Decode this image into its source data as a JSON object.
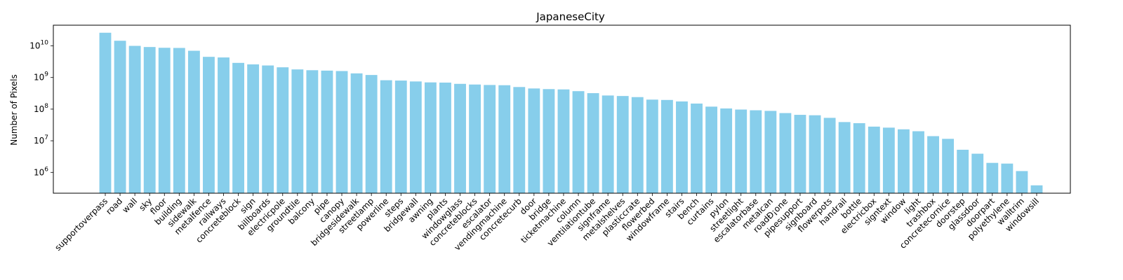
{
  "chart_data": {
    "type": "bar",
    "title": "JapaneseCity",
    "xlabel": "",
    "ylabel": "Number of Pixels",
    "yscale": "log",
    "ylim": [
      220000,
      45000000000
    ],
    "grid": false,
    "bar_color": "#87CEEB",
    "categories": [
      "supportoverpass",
      "road",
      "wall",
      "sky",
      "floor",
      "building",
      "sidewalk",
      "metalfence",
      "railways",
      "concreteblock",
      "sign",
      "billboards",
      "electricpole",
      "groundtile",
      "balcony",
      "pipe",
      "canopy",
      "bridgesidewalk",
      "streetlamp",
      "powerline",
      "steps",
      "bridgewall",
      "awning",
      "plants",
      "windowglass",
      "concreteblocks",
      "escalator",
      "vendingmachine",
      "concretecurb",
      "door",
      "bridge",
      "ticketmachine",
      "column",
      "ventilationtube",
      "signframe",
      "metalshelves",
      "plasticcrate",
      "flowerbed",
      "windowframe",
      "stairs",
      "bench",
      "curtains",
      "pylon",
      "streetlight",
      "escalatorbase",
      "metalcan",
      "roadĐ¡one",
      "pipesupport",
      "signboard",
      "flowerpots",
      "handrail",
      "bottle",
      "electricbox",
      "signtext",
      "window",
      "light",
      "trashbox",
      "concretecornice",
      "doorstep",
      "glassdoor",
      "doorpart",
      "polyethylene",
      "walltrim",
      "windowsill"
    ],
    "values": [
      26000000000,
      14500000000,
      10000000000,
      9200000000,
      8700000000,
      8600000000,
      7000000000,
      4500000000,
      4300000000,
      2900000000,
      2600000000,
      2400000000,
      2100000000,
      1800000000,
      1700000000,
      1650000000,
      1600000000,
      1350000000,
      1200000000,
      820000000,
      800000000,
      750000000,
      700000000,
      690000000,
      630000000,
      600000000,
      580000000,
      570000000,
      500000000,
      450000000,
      430000000,
      420000000,
      370000000,
      320000000,
      270000000,
      260000000,
      240000000,
      200000000,
      195000000,
      175000000,
      150000000,
      120000000,
      105000000,
      97000000,
      92000000,
      88000000,
      75000000,
      66000000,
      64000000,
      53000000,
      39000000,
      36000000,
      28000000,
      26000000,
      23000000,
      20000000,
      14000000,
      11500000,
      5200000,
      3900000,
      2000000,
      1900000,
      1100000,
      390000
    ],
    "y_ticks": [
      {
        "value": 1000000,
        "base": "10",
        "exp": "6"
      },
      {
        "value": 10000000,
        "base": "10",
        "exp": "7"
      },
      {
        "value": 100000000,
        "base": "10",
        "exp": "8"
      },
      {
        "value": 1000000000,
        "base": "10",
        "exp": "9"
      },
      {
        "value": 10000000000,
        "base": "10",
        "exp": "10"
      }
    ]
  }
}
